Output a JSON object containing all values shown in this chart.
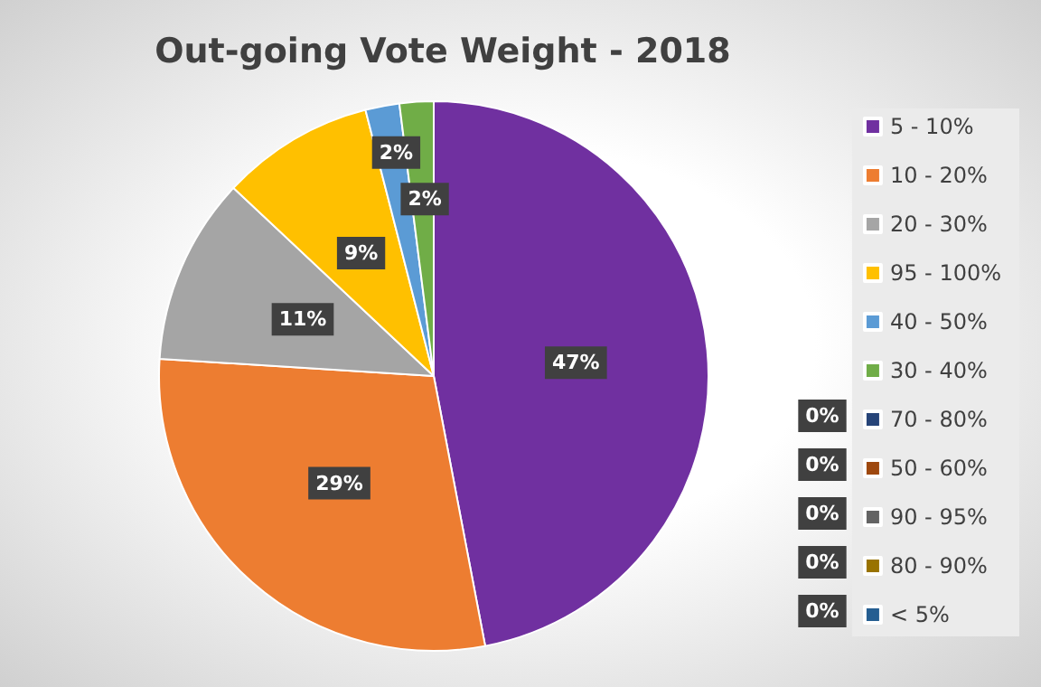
{
  "chart_data": {
    "type": "pie",
    "title": "Out-going Vote Weight - 2018",
    "categories": [
      "5 - 10%",
      "10 - 20%",
      "20 - 30%",
      "95 - 100%",
      "40 - 50%",
      "30 - 40%",
      "70 - 80%",
      "50 - 60%",
      "90 - 95%",
      "80 - 90%",
      "< 5%"
    ],
    "values": [
      47,
      29,
      11,
      9,
      2,
      2,
      0,
      0,
      0,
      0,
      0
    ],
    "colors": [
      "#7030a0",
      "#ed7d31",
      "#a5a5a5",
      "#ffc000",
      "#5b9bd5",
      "#70ad47",
      "#264478",
      "#9e480e",
      "#636363",
      "#997300",
      "#255e91"
    ],
    "value_labels": [
      "47%",
      "29%",
      "11%",
      "9%",
      "2%",
      "2%",
      "0%",
      "0%",
      "0%",
      "0%",
      "0%"
    ],
    "legend": "right"
  }
}
